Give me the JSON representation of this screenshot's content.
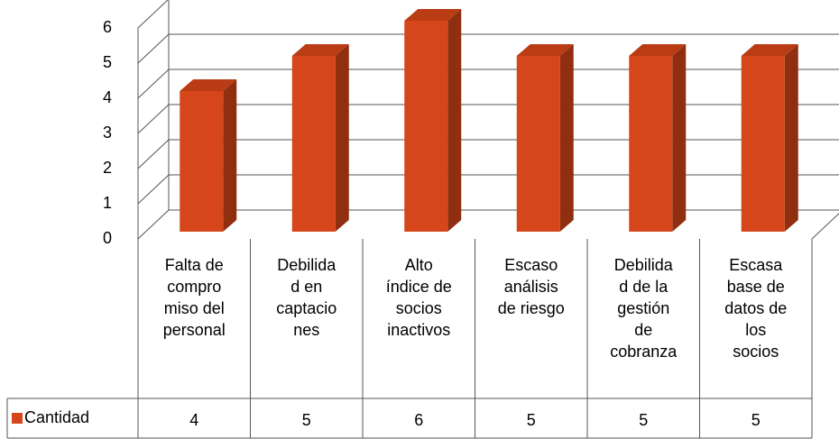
{
  "chart_data": {
    "type": "bar",
    "categories": [
      "Falta de\ncompro\nmiso del\npersonal",
      "Debilida\nd en\ncaptacio\nnes",
      "Alto\níndice de\nsocios\ninactivos",
      "Escaso\nanálisis\nde riesgo",
      "Debilida\nd de la\ngestión\nde\ncobranza",
      "Escasa\nbase de\ndatos de\nlos\nsocios"
    ],
    "series": [
      {
        "name": "Cantidad",
        "color": "#d5461a",
        "values": [
          4,
          5,
          6,
          5,
          5,
          5
        ]
      }
    ],
    "ylim": [
      0,
      6
    ],
    "yticks": [
      0,
      1,
      2,
      3,
      4,
      5,
      6
    ],
    "grid": true,
    "data_table": true
  }
}
